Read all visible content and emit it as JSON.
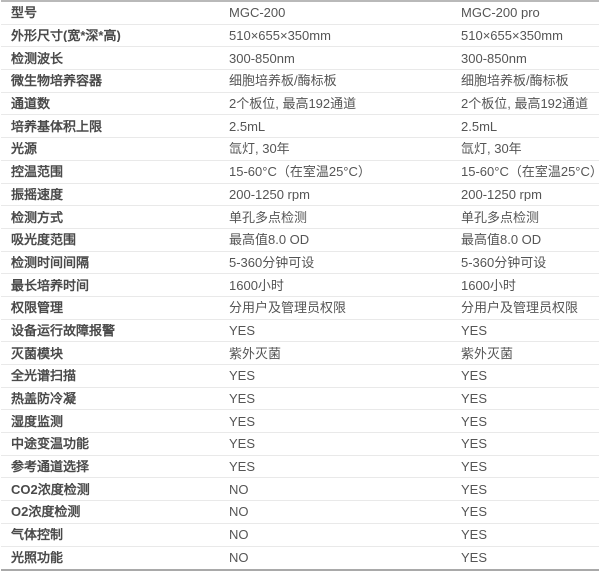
{
  "table": {
    "column_headers": {
      "col1": "MGC-200",
      "col2": "MGC-200 pro"
    },
    "rows": [
      {
        "label": "型号",
        "mgc200": "MGC-200",
        "mgc200pro": "MGC-200 pro"
      },
      {
        "label": "外形尺寸(宽*深*高)",
        "mgc200": "510×655×350mm",
        "mgc200pro": "510×655×350mm"
      },
      {
        "label": "检测波长",
        "mgc200": "300-850nm",
        "mgc200pro": "300-850nm"
      },
      {
        "label": "微生物培养容器",
        "mgc200": "细胞培养板/酶标板",
        "mgc200pro": "细胞培养板/酶标板"
      },
      {
        "label": "通道数",
        "mgc200": "2个板位, 最高192通道",
        "mgc200pro": "2个板位, 最高192通道"
      },
      {
        "label": "培养基体积上限",
        "mgc200": "2.5mL",
        "mgc200pro": "2.5mL"
      },
      {
        "label": "光源",
        "mgc200": "氙灯, 30年",
        "mgc200pro": "氙灯, 30年"
      },
      {
        "label": "控温范围",
        "mgc200": "15-60°C（在室温25°C）",
        "mgc200pro": "15-60°C（在室温25°C）"
      },
      {
        "label": "振摇速度",
        "mgc200": "200-1250 rpm",
        "mgc200pro": "200-1250 rpm"
      },
      {
        "label": "检测方式",
        "mgc200": "单孔多点检测",
        "mgc200pro": "单孔多点检测"
      },
      {
        "label": "吸光度范围",
        "mgc200": "最高值8.0 OD",
        "mgc200pro": "最高值8.0 OD"
      },
      {
        "label": "检测时间间隔",
        "mgc200": "5-360分钟可设",
        "mgc200pro": "5-360分钟可设"
      },
      {
        "label": "最长培养时间",
        "mgc200": "1600小时",
        "mgc200pro": "1600小时"
      },
      {
        "label": "权限管理",
        "mgc200": "分用户及管理员权限",
        "mgc200pro": "分用户及管理员权限"
      },
      {
        "label": "设备运行故障报警",
        "mgc200": "YES",
        "mgc200pro": "YES"
      },
      {
        "label": "灭菌模块",
        "mgc200": "紫外灭菌",
        "mgc200pro": "紫外灭菌"
      },
      {
        "label": "全光谱扫描",
        "mgc200": "YES",
        "mgc200pro": "YES"
      },
      {
        "label": "热盖防冷凝",
        "mgc200": "YES",
        "mgc200pro": "YES"
      },
      {
        "label": "湿度监测",
        "mgc200": "YES",
        "mgc200pro": "YES"
      },
      {
        "label": "中途变温功能",
        "mgc200": "YES",
        "mgc200pro": "YES"
      },
      {
        "label": "参考通道选择",
        "mgc200": "YES",
        "mgc200pro": "YES"
      },
      {
        "label": "CO2浓度检测",
        "mgc200": "NO",
        "mgc200pro": "YES"
      },
      {
        "label": "O2浓度检测",
        "mgc200": "NO",
        "mgc200pro": "YES"
      },
      {
        "label": "气体控制",
        "mgc200": "NO",
        "mgc200pro": "YES"
      },
      {
        "label": "光照功能",
        "mgc200": "NO",
        "mgc200pro": "YES"
      }
    ],
    "colors": {
      "label_text": "#4a4a4a",
      "value_text": "#555555",
      "row_separator": "#e9e9e9",
      "top_border": "#b9b9b9",
      "bottom_border": "#a9a9a9",
      "background": "#ffffff"
    }
  }
}
